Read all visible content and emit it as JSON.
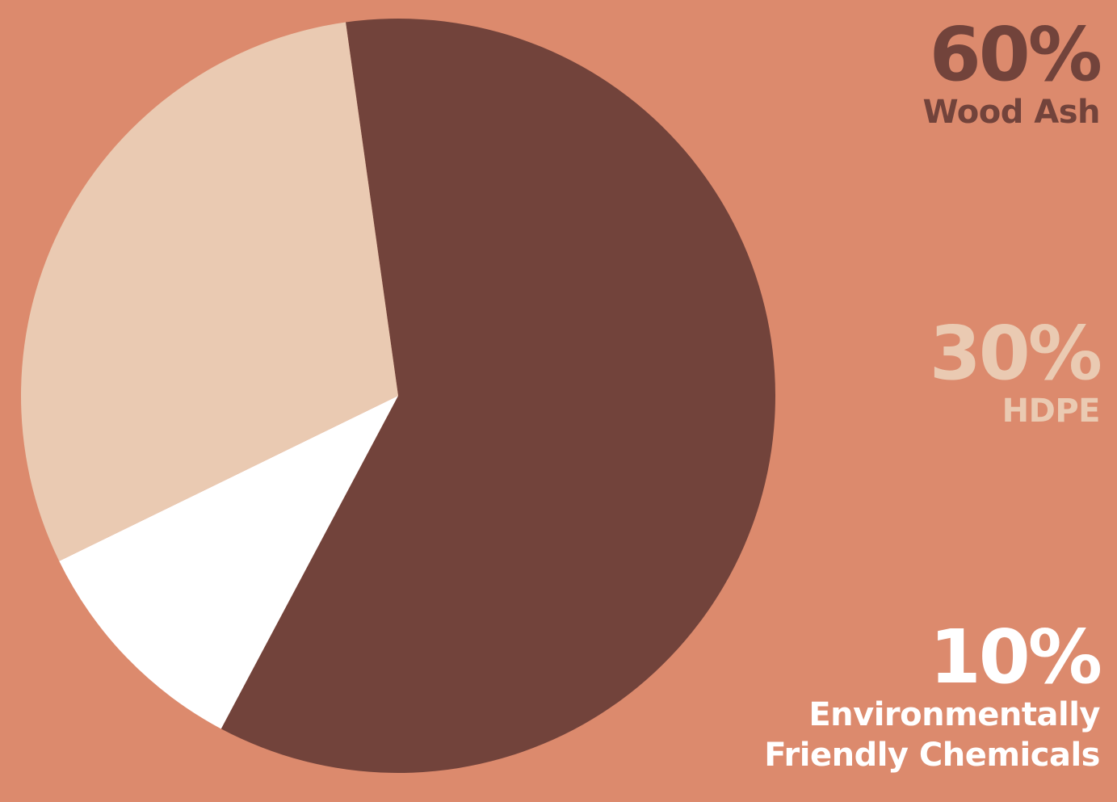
{
  "background_color": "#DC8A6D",
  "chart_data": {
    "type": "pie",
    "title": "",
    "unit": "%",
    "slices": [
      {
        "label": "Wood Ash",
        "value": 60,
        "value_label": "60%",
        "color": "#72433B",
        "legend_label_lines": [
          "Wood Ash"
        ]
      },
      {
        "label": "Environmentally Friendly Chemicals",
        "value": 10,
        "value_label": "10%",
        "color": "#FFFFFF",
        "legend_label_lines": [
          "Environmentally",
          "Friendly Chemicals"
        ]
      },
      {
        "label": "HDPE",
        "value": 30,
        "value_label": "30%",
        "color": "#EACAB2",
        "legend_label_lines": [
          "HDPE"
        ]
      }
    ],
    "start_angle_deg": -8,
    "direction": "clockwise",
    "legend_placement": "right"
  }
}
